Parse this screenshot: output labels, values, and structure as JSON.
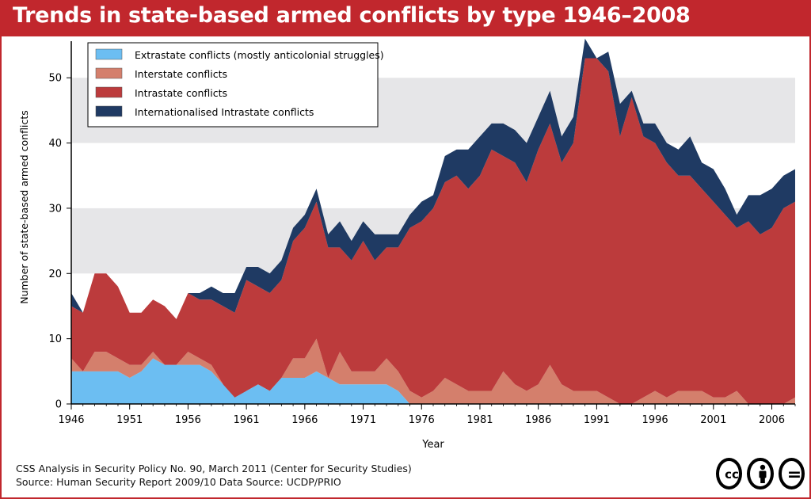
{
  "title": "Trends in state-based armed conflicts by type 1946–2008",
  "footer": {
    "line1": "CSS Analysis in Security Policy No. 90, March 2011 (Center for Security Studies)",
    "line2": "Source: Human Security Report 2009/10   Data Source:  UCDP/PRIO"
  },
  "license_icons": [
    "cc-icon",
    "by-attribution-icon",
    "nd-no-derivatives-icon"
  ],
  "license_cc_text": "cc",
  "license_nd_text": "=",
  "chart_data": {
    "type": "area",
    "stacked": true,
    "xlabel": "Year",
    "ylabel": "Number of state-based  armed conflicts",
    "xlim": [
      1946,
      2008
    ],
    "ylim": [
      0,
      55
    ],
    "x_ticks": [
      "1946",
      "1951",
      "1956",
      "1961",
      "1966",
      "1971",
      "1976",
      "1981",
      "1986",
      "1991",
      "1996",
      "2001",
      "2006"
    ],
    "y_ticks": [
      "0",
      "10",
      "20",
      "30",
      "40",
      "50"
    ],
    "grid_bands": [
      [
        20,
        30
      ],
      [
        40,
        50
      ]
    ],
    "legend_position": "top-left",
    "x": [
      1946,
      1947,
      1948,
      1949,
      1950,
      1951,
      1952,
      1953,
      1954,
      1955,
      1956,
      1957,
      1958,
      1959,
      1960,
      1961,
      1962,
      1963,
      1964,
      1965,
      1966,
      1967,
      1968,
      1969,
      1970,
      1971,
      1972,
      1973,
      1974,
      1975,
      1976,
      1977,
      1978,
      1979,
      1980,
      1981,
      1982,
      1983,
      1984,
      1985,
      1986,
      1987,
      1988,
      1989,
      1990,
      1991,
      1992,
      1993,
      1994,
      1995,
      1996,
      1997,
      1998,
      1999,
      2000,
      2001,
      2002,
      2003,
      2004,
      2005,
      2006,
      2007,
      2008
    ],
    "series": [
      {
        "name": "Extrastate conflicts (mostly anticolonial struggles)",
        "color": "#6cbef2",
        "values": [
          5,
          5,
          5,
          5,
          5,
          4,
          5,
          7,
          6,
          6,
          6,
          6,
          5,
          3,
          2,
          2,
          3,
          2,
          4,
          4,
          4,
          5,
          4,
          3,
          3,
          3,
          3,
          3,
          2,
          0,
          0,
          0,
          0,
          0,
          0,
          0,
          0,
          0,
          0,
          0,
          0,
          0,
          0,
          0,
          0,
          0,
          0,
          0,
          0,
          0,
          0,
          0,
          0,
          0,
          0,
          0,
          0,
          0,
          0,
          0,
          0,
          0,
          0
        ]
      },
      {
        "name": "Interstate conflicts",
        "color": "#d47f6c",
        "values": [
          2,
          0,
          3,
          3,
          2,
          2,
          1,
          1,
          0,
          0,
          2,
          1,
          1,
          0,
          -1,
          0,
          0,
          0,
          0,
          3,
          3,
          5,
          0,
          5,
          2,
          2,
          2,
          4,
          3,
          2,
          1,
          2,
          4,
          3,
          2,
          2,
          2,
          5,
          3,
          2,
          3,
          6,
          3,
          2,
          2,
          2,
          1,
          0,
          0,
          1,
          2,
          1,
          2,
          2,
          2,
          1,
          1,
          2,
          0,
          0,
          0,
          0,
          1
        ]
      },
      {
        "name": "Intrastate conflicts",
        "color": "#bc3b3c",
        "values": [
          8,
          9,
          12,
          12,
          11,
          8,
          8,
          8,
          9,
          7,
          9,
          9,
          10,
          12,
          13,
          17,
          15,
          15,
          15,
          18,
          20,
          21,
          20,
          16,
          17,
          20,
          17,
          17,
          19,
          25,
          27,
          28,
          30,
          32,
          31,
          33,
          37,
          33,
          34,
          32,
          36,
          37,
          34,
          38,
          51,
          51,
          50,
          41,
          47,
          40,
          38,
          36,
          33,
          33,
          31,
          30,
          28,
          25,
          28,
          26,
          27,
          30,
          30
        ]
      },
      {
        "name": "Internationalised Intrastate conflicts",
        "color": "#1f3a63",
        "values": [
          2,
          0,
          0,
          0,
          0,
          0,
          0,
          0,
          0,
          0,
          0,
          1,
          2,
          2,
          3,
          2,
          3,
          3,
          3,
          2,
          2,
          2,
          2,
          4,
          3,
          3,
          4,
          2,
          2,
          2,
          3,
          2,
          4,
          4,
          6,
          6,
          4,
          5,
          5,
          6,
          5,
          5,
          4,
          4,
          3,
          0,
          3,
          5,
          1,
          2,
          3,
          3,
          4,
          6,
          4,
          5,
          4,
          2,
          4,
          6,
          6,
          5,
          5
        ]
      }
    ]
  }
}
